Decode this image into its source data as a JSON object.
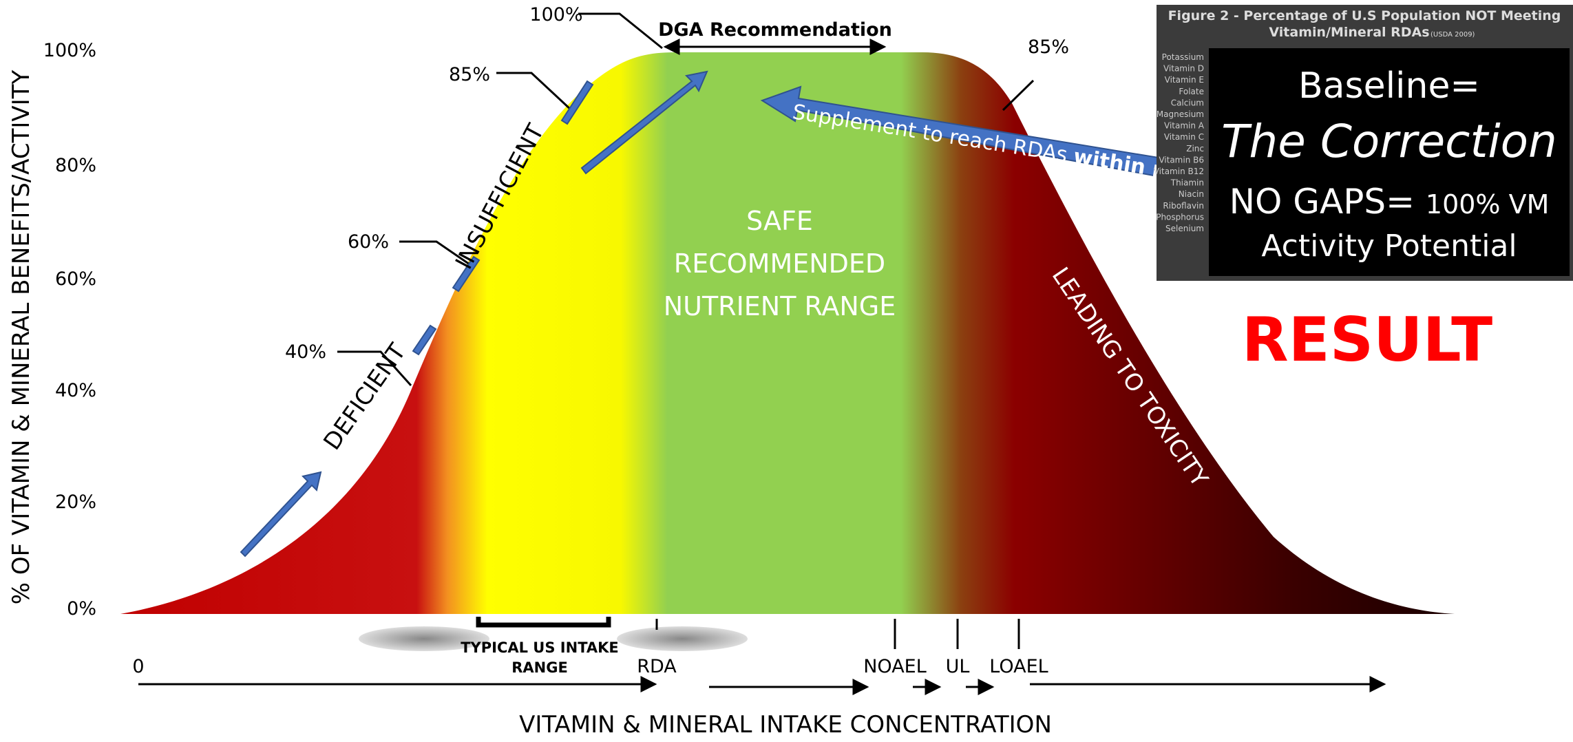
{
  "y_axis": {
    "label": "% OF VITAMIN & MINERAL BENEFITS/ACTIVITY",
    "ticks": [
      "100%",
      "80%",
      "60%",
      "40%",
      "20%",
      "0%"
    ]
  },
  "x_axis": {
    "label": "VITAMIN & MINERAL INTAKE CONCENTRATION",
    "markers": [
      "0",
      "RDA",
      "NOAEL",
      "UL",
      "LOAEL"
    ]
  },
  "callouts": {
    "top": "100%",
    "left_85": "85%",
    "left_60": "60%",
    "left_40": "40%",
    "right_85": "85%"
  },
  "dga": "DGA Recommendation",
  "zones": {
    "deficient": "DEFICIENT",
    "insufficient": "INSUFFICIENT",
    "safe": "SAFE RECOMMENDED NUTRIENT RANGE",
    "toxicity": "LEADING TO TOXICITY"
  },
  "supplement": {
    "text": "Supplement to reach RDAs ",
    "bold": "within playing"
  },
  "typical_range": [
    "TYPICAL US INTAKE",
    "RANGE"
  ],
  "figure": {
    "title": "Figure 2 - Percentage of U.S Population NOT Meeting",
    "title2": "Vitamin/Mineral RDAs",
    "source": "(USDA 2009)",
    "nutrients": [
      "Potassium",
      "Vitamin D",
      "Vitamin E",
      "Folate",
      "Calcium",
      "Magnesium",
      "Vitamin A",
      "Vitamin C",
      "Zinc",
      "Vitamin B6",
      "Vitamin B12",
      "Thiamin",
      "Niacin",
      "Riboflavin",
      "Phosphorus",
      "Selenium"
    ]
  },
  "box": {
    "line1": "Baseline=",
    "line2": "The Correction",
    "line3a": "NO GAPS= ",
    "line3b": "100% VM",
    "line4": "Activity Potential"
  },
  "result": "RESULT"
}
